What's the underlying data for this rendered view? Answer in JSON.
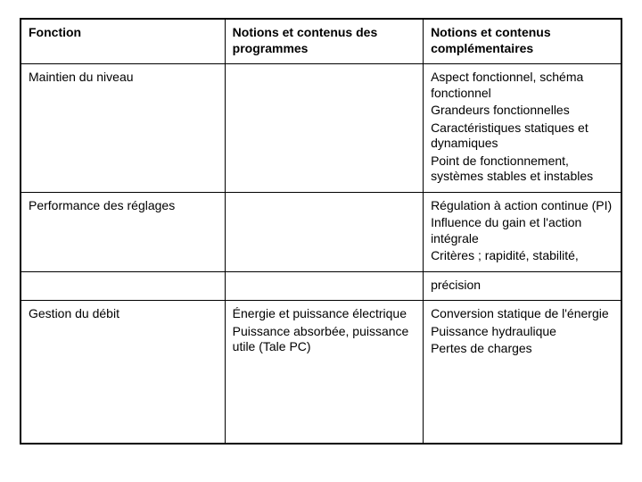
{
  "table": {
    "columns": [
      "Fonction",
      "Notions et contenus des programmes",
      "Notions et contenus complémentaires"
    ],
    "column_widths_pct": [
      34,
      33,
      33
    ],
    "border_color": "#000000",
    "background_color": "#ffffff",
    "font_family": "Arial",
    "font_size_pt": 11,
    "header_font_weight": "bold",
    "rows": [
      {
        "fonction": "Maintien du niveau",
        "programmes": "",
        "complementaires_lines": [
          "Aspect fonctionnel, schéma fonctionnel",
          "Grandeurs fonctionnelles",
          "Caractéristiques statiques et dynamiques",
          "Point de fonctionnement, systèmes stables et instables"
        ]
      },
      {
        "fonction": "Performance des réglages",
        "programmes": "",
        "complementaires_lines": [
          "Régulation à action continue (PI)",
          "Influence du gain et l'action intégrale",
          "Critères ; rapidité, stabilité,"
        ]
      },
      {
        "precision_cell": "précision"
      },
      {
        "fonction": "Gestion du débit",
        "programmes_lines": [
          "Énergie et puissance électrique",
          "Puissance absorbée, puissance utile (Tale PC)"
        ],
        "complementaires_lines": [
          "Conversion statique de l'énergie",
          "Puissance hydraulique",
          "Pertes de charges"
        ]
      }
    ]
  }
}
